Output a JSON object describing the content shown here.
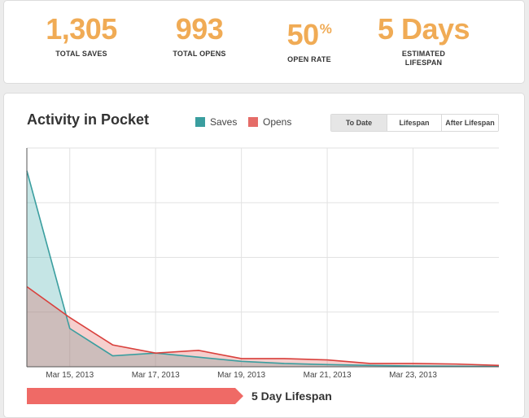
{
  "stats": {
    "total_saves": {
      "value": "1,305",
      "label": "TOTAL SAVES"
    },
    "total_opens": {
      "value": "993",
      "label": "TOTAL OPENS"
    },
    "open_rate": {
      "value": "50",
      "unit": "%",
      "label": "OPEN RATE"
    },
    "estimated_lifespan": {
      "value": "5 Days",
      "label": "ESTIMATED LIFESPAN"
    }
  },
  "activity": {
    "title": "Activity in Pocket",
    "legend": {
      "saves": "Saves",
      "opens": "Opens"
    },
    "toggles": {
      "to_date": "To Date",
      "lifespan": "Lifespan",
      "after_lifespan": "After Lifespan",
      "active": "to_date"
    },
    "lifespan_banner": "5 Day Lifespan",
    "lifespan_days": 5
  },
  "colors": {
    "stat_accent": "#f0ab55",
    "saves": "#3a9e9f",
    "opens": "#d9403c",
    "lifespan_bar": "#ef6a66"
  },
  "chart_data": {
    "type": "area",
    "x": [
      "2013-03-14",
      "2013-03-15",
      "2013-03-16",
      "2013-03-17",
      "2013-03-18",
      "2013-03-19",
      "2013-03-20",
      "2013-03-21",
      "2013-03-22",
      "2013-03-23",
      "2013-03-24",
      "2013-03-25"
    ],
    "x_tick_labels": [
      "Mar 15, 2013",
      "Mar 17, 2013",
      "Mar 19, 2013",
      "Mar 21, 2013",
      "Mar 23, 2013"
    ],
    "series": [
      {
        "name": "Saves",
        "values": [
          717,
          140,
          40,
          50,
          35,
          20,
          12,
          8,
          5,
          3,
          2,
          1
        ]
      },
      {
        "name": "Opens",
        "values": [
          293,
          180,
          80,
          50,
          60,
          30,
          30,
          25,
          12,
          12,
          10,
          5
        ]
      }
    ],
    "ylim": [
      0,
      800
    ],
    "grid": true
  }
}
